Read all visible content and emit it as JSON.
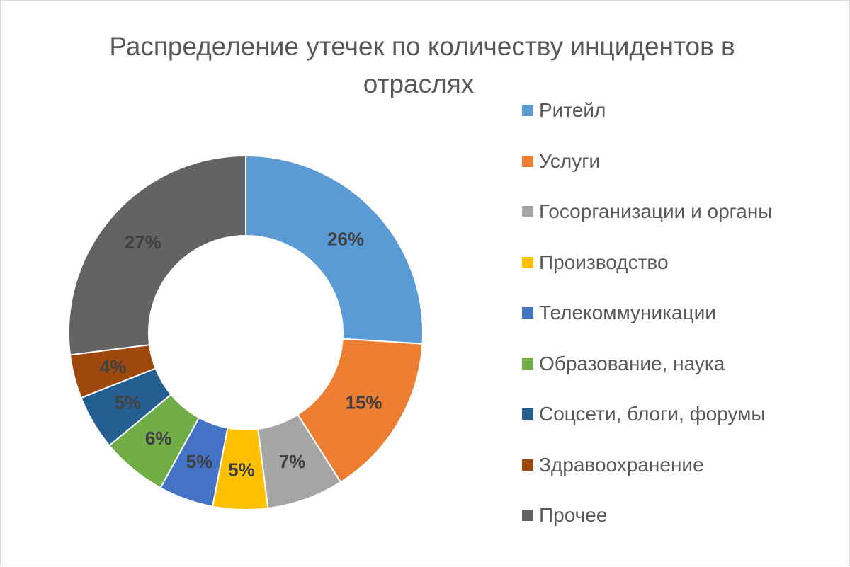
{
  "chart_data": {
    "type": "pie",
    "variant": "donut",
    "title": "Распределение утечек по количеству инцидентов в отраслях",
    "title_lines": [
      "Распределение утечек по количеству инцидентов в",
      "отраслях"
    ],
    "legend_position": "right",
    "categories": [
      "Ритейл",
      "Услуги",
      "Госорганизации и органы",
      "Производство",
      "Телекоммуникации",
      "Образование, наука",
      "Соцсети, блоги, форумы",
      "Здравоохранение",
      "Прочее"
    ],
    "values": [
      26,
      15,
      7,
      5,
      5,
      6,
      5,
      4,
      27
    ],
    "labels": [
      "26%",
      "15%",
      "7%",
      "5%",
      "5%",
      "6%",
      "5%",
      "4%",
      "27%"
    ],
    "colors": [
      "#5B9BD5",
      "#ED7D31",
      "#A5A5A5",
      "#FFC000",
      "#4472C4",
      "#70AD47",
      "#255E91",
      "#9E480E",
      "#636363"
    ],
    "value_unit": "%"
  }
}
